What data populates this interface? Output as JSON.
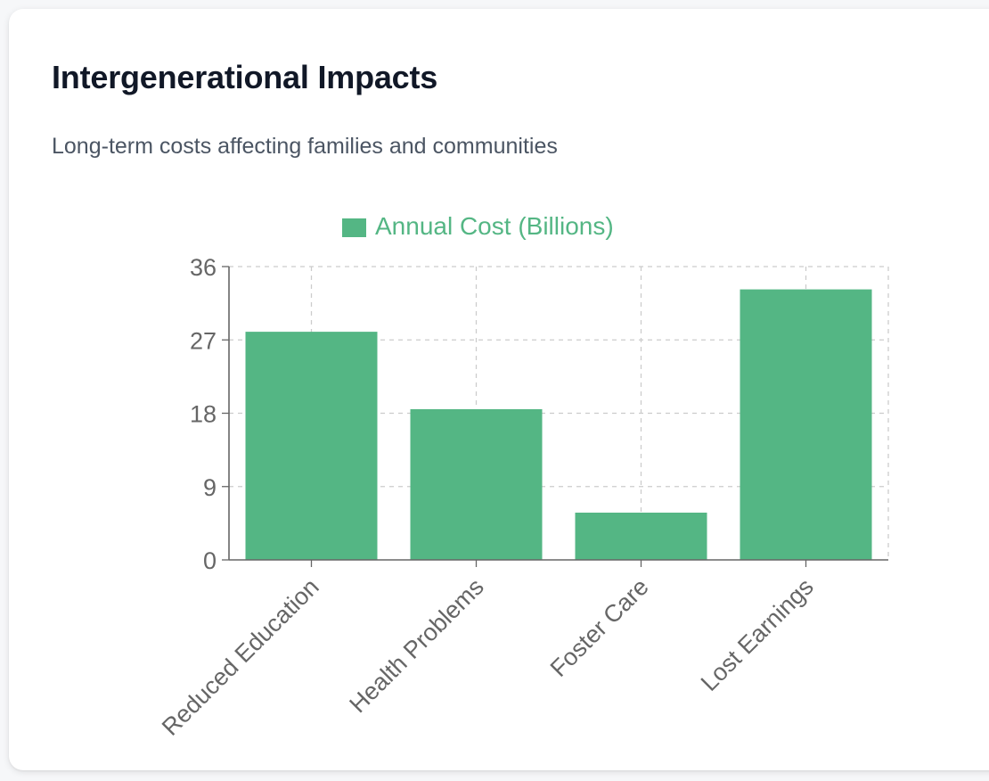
{
  "card": {
    "title": "Intergenerational Impacts",
    "subtitle": "Long-term costs affecting families and communities"
  },
  "colors": {
    "bar": "#54b684",
    "legend_text": "#54b684",
    "axis": "#666666",
    "grid": "#cccccc",
    "title": "#111827",
    "subtitle": "#4b5563"
  },
  "chart_data": {
    "type": "bar",
    "categories": [
      "Reduced Education",
      "Health Problems",
      "Foster Care",
      "Lost Earnings"
    ],
    "series": [
      {
        "name": "Annual Cost (Billions)",
        "values": [
          28,
          18.5,
          5.8,
          33.2
        ]
      }
    ],
    "ylim": [
      0,
      36
    ],
    "yticks": [
      "0",
      "9",
      "18",
      "27",
      "36"
    ],
    "grid": true,
    "legend": "top"
  }
}
